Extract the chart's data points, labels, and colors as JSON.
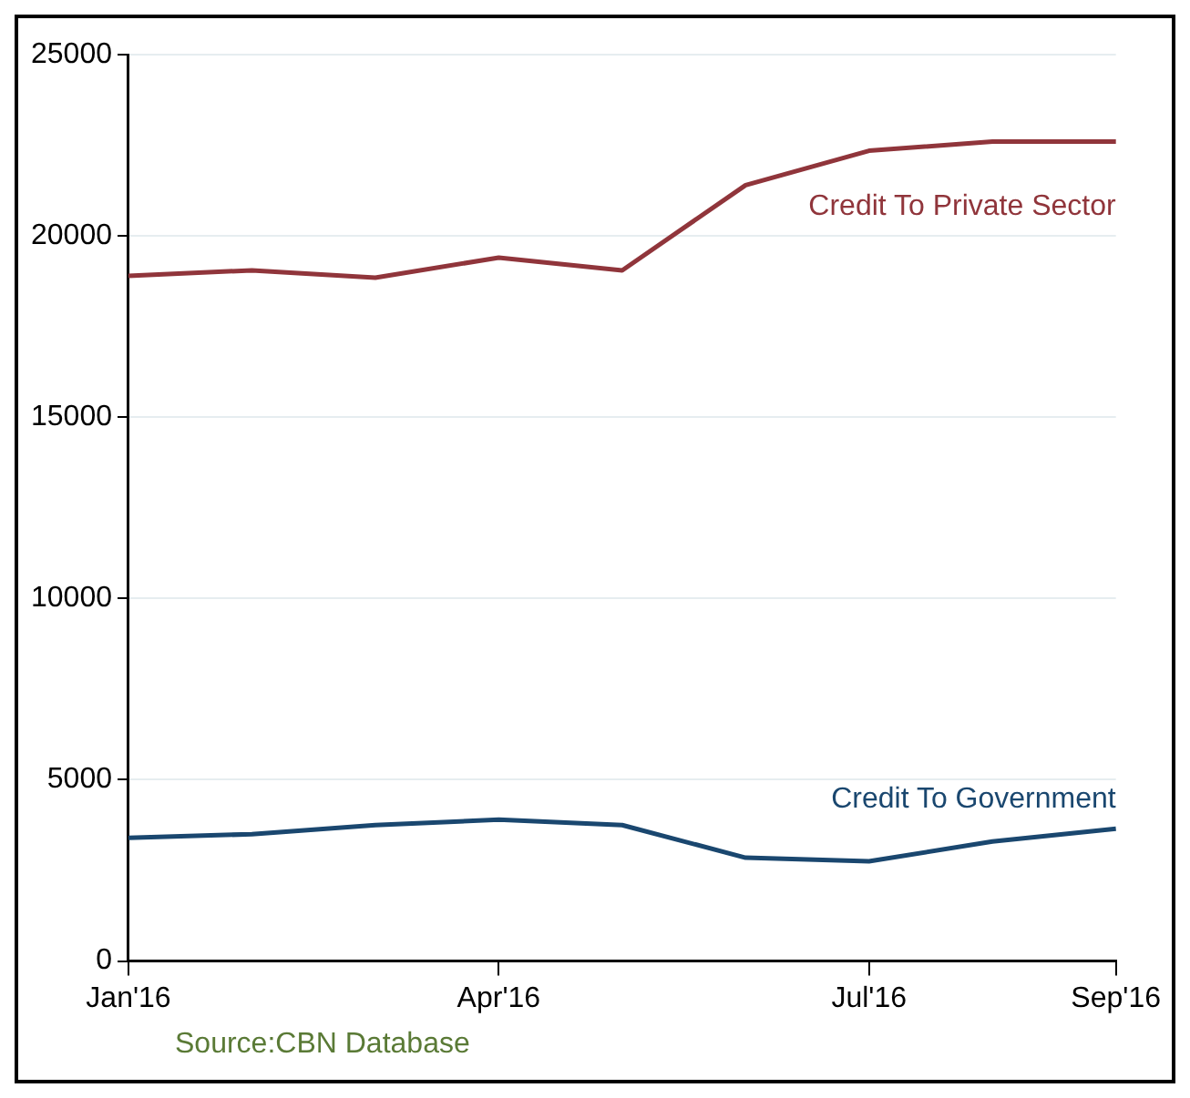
{
  "chart_data": {
    "type": "line",
    "categories": [
      "Jan'16",
      null,
      null,
      "Apr'16",
      null,
      null,
      "Jul'16",
      null,
      "Sep'16"
    ],
    "series": [
      {
        "name": "Credit To Private Sector",
        "color": "#90353b",
        "values": [
          18900,
          19050,
          18850,
          19400,
          19050,
          21400,
          22350,
          22600,
          22600
        ]
      },
      {
        "name": "Credit To Government",
        "color": "#1a476f",
        "values": [
          3400,
          3500,
          3750,
          3900,
          3750,
          2850,
          2750,
          3300,
          3650
        ]
      }
    ],
    "ylim": [
      0,
      25000
    ],
    "yticks": [
      0,
      5000,
      10000,
      15000,
      20000,
      25000
    ],
    "grid": "y",
    "legend": false,
    "marker": "none",
    "line_style": "solid",
    "annotations": [
      "Source:CBN Database"
    ]
  }
}
